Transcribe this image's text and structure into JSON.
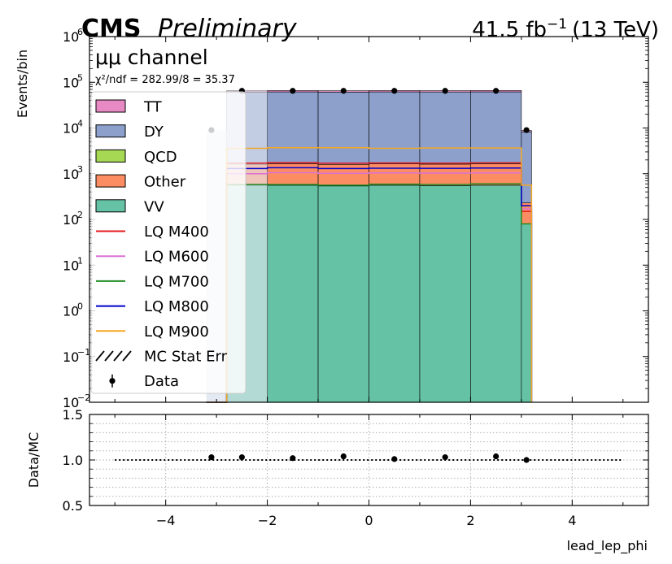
{
  "header": {
    "experiment": "CMS",
    "status": "Preliminary",
    "lumi": "41.5 fb",
    "lumi_sup": "−1",
    "energy": "(13 TeV)"
  },
  "annotations": {
    "channel": "μμ channel",
    "chi2": "χ²/ndf = 282.99/8 = 35.37"
  },
  "colors": {
    "TT": "#e78ac3",
    "DY": "#8da0cb",
    "QCD": "#a6d854",
    "Other": "#fc8d62",
    "VV": "#66c2a5",
    "LQ M400": "#e41a1c",
    "LQ M600": "#da70d6",
    "LQ M700": "#228b22",
    "LQ M800": "#0000cd",
    "LQ M900": "#f5a623"
  },
  "chart_data": [
    {
      "type": "bar",
      "stacked": true,
      "log_y": true,
      "ylabel": "Events/bin",
      "xlim": [
        -5.5,
        5.5
      ],
      "ylim": [
        0.01,
        1000000
      ],
      "x_ticks": [
        -4,
        -2,
        0,
        2,
        4
      ],
      "y_ticks": [
        0.01,
        0.1,
        1,
        10,
        100,
        1000,
        10000,
        100000,
        1000000
      ],
      "y_tick_labels": [
        "10",
        "10",
        "10",
        "10",
        "10",
        "10",
        "10",
        "10",
        "10"
      ],
      "y_tick_exponents": [
        "−2",
        "−1",
        "0",
        "1",
        "2",
        "3",
        "4",
        "5",
        "6"
      ],
      "bin_edges": [
        -3.2,
        -2.8,
        -2.0,
        -1.0,
        0.0,
        1.0,
        2.0,
        3.0,
        3.2
      ],
      "stack_order": [
        "VV",
        "Other",
        "QCD",
        "DY",
        "TT"
      ],
      "series": [
        {
          "name": "VV",
          "values": [
            0,
            560,
            560,
            540,
            560,
            550,
            560,
            80
          ]
        },
        {
          "name": "Other",
          "values": [
            0,
            1050,
            1100,
            1060,
            1080,
            1070,
            1090,
            150
          ]
        },
        {
          "name": "QCD",
          "values": [
            0,
            0,
            0,
            0,
            0,
            0,
            0,
            0
          ]
        },
        {
          "name": "DY",
          "values": [
            0,
            59000,
            60000,
            59500,
            60000,
            59700,
            60100,
            8000
          ]
        },
        {
          "name": "TT",
          "values": [
            0,
            4200,
            4300,
            4200,
            4300,
            4250,
            4300,
            560
          ]
        }
      ],
      "signals": [
        {
          "name": "LQ M400",
          "values": [
            0,
            1700,
            1750,
            1700,
            1720,
            1700,
            1730,
            150
          ]
        },
        {
          "name": "LQ M600",
          "values": [
            0,
            1000,
            1050,
            1020,
            1040,
            1030,
            1040,
            170
          ]
        },
        {
          "name": "LQ M700",
          "values": [
            0,
            580,
            580,
            560,
            590,
            580,
            600,
            80
          ]
        },
        {
          "name": "LQ M800",
          "values": [
            0,
            1300,
            1350,
            1300,
            1320,
            1310,
            1330,
            200
          ]
        },
        {
          "name": "LQ M900",
          "values": [
            0,
            3600,
            3700,
            3700,
            3600,
            3650,
            3650,
            560
          ]
        }
      ],
      "data_points": {
        "x": [
          -3.1,
          -2.5,
          -1.5,
          -0.5,
          0.5,
          1.5,
          2.5,
          3.1
        ],
        "y": [
          9000,
          65000,
          65000,
          65000,
          65000,
          65000,
          65000,
          9000
        ]
      },
      "legend": {
        "position": "upper-left",
        "entries": [
          "TT",
          "DY",
          "QCD",
          "Other",
          "VV",
          "LQ M400",
          "LQ M600",
          "LQ M700",
          "LQ M800",
          "LQ M900",
          "MC Stat Err",
          "Data"
        ]
      }
    },
    {
      "type": "scatter",
      "ylabel": "Data/MC",
      "xlabel": "lead_lep_phi",
      "xlim": [
        -5.5,
        5.5
      ],
      "ylim": [
        0.5,
        1.5
      ],
      "x_ticks": [
        -4,
        -2,
        0,
        2,
        4
      ],
      "x_tick_labels": [
        "−4",
        "−2",
        "0",
        "2",
        "4"
      ],
      "y_ticks": [
        0.5,
        1.0,
        1.5
      ],
      "y_tick_labels": [
        "0.5",
        "1.0",
        "1.5"
      ],
      "grid": true,
      "reference_line": {
        "y": 1.0,
        "x_range": [
          -5,
          5
        ]
      },
      "ratio_points": {
        "x": [
          -3.1,
          -2.5,
          -1.5,
          -0.5,
          0.5,
          1.5,
          2.5,
          3.1
        ],
        "y": [
          1.03,
          1.03,
          1.02,
          1.04,
          1.01,
          1.03,
          1.04,
          1.0
        ]
      }
    }
  ]
}
